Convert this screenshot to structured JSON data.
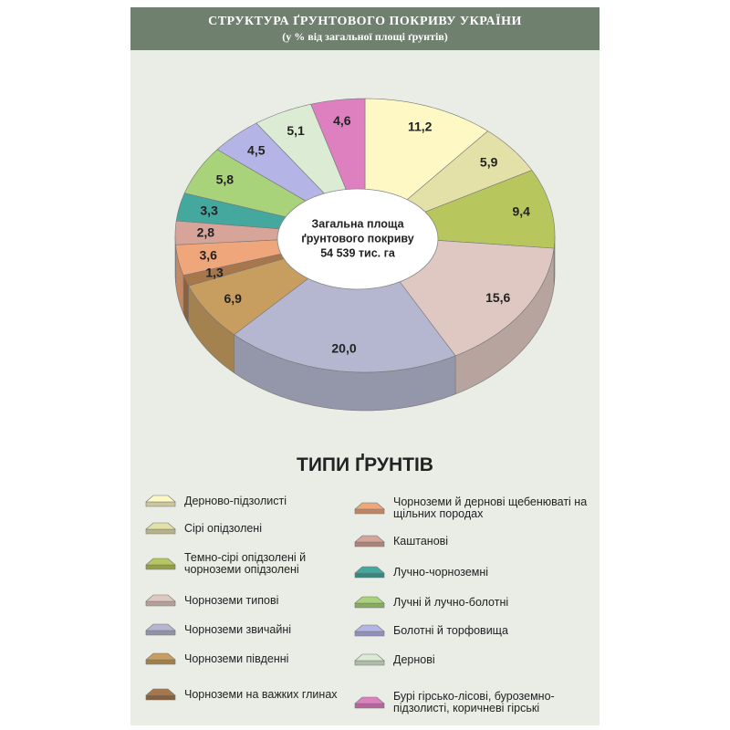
{
  "chart_data": {
    "type": "pie",
    "title": "СТРУКТУРА ҐРУНТОВОГО ПОКРИВУ УКРАЇНИ",
    "subtitle": "(у % від загальної площі ґрунтів)",
    "center_label": [
      "Загальна площа",
      "ґрунтового покриву",
      "54 539 тис. га"
    ],
    "legend_title": "ТИПИ ҐРУНТІВ",
    "categories": [
      "Дерново-підзолисті",
      "Сірі опідзолені",
      "Темно-сірі опідзолені й чорноземи опідзолені",
      "Чорноземи типові",
      "Чорноземи звичайні",
      "Чорноземи південні",
      "Чорноземи на важких глинах",
      "Чорноземи й дернові щебенюваті на щільних породах",
      "Каштанові",
      "Лучно-чорноземні",
      "Лучні й лучно-болотні",
      "Болотні й торфовища",
      "Дернові",
      "Бурі гірсько-лісові, буроземно-підзолисті, коричневі гірські"
    ],
    "values": [
      11.2,
      5.9,
      9.4,
      15.6,
      20.0,
      6.9,
      1.3,
      3.6,
      2.8,
      3.3,
      5.8,
      4.5,
      5.1,
      4.6
    ],
    "value_labels": [
      "11,2",
      "5,9",
      "9,4",
      "15,6",
      "20,0",
      "6,9",
      "1,3",
      "3,6",
      "2,8",
      "3,3",
      "5,8",
      "4,5",
      "5,1",
      "4,6"
    ],
    "colors": [
      "#fdf8c4",
      "#e3e1a8",
      "#b8c65e",
      "#e0c8c2",
      "#b4b7cf",
      "#c89e60",
      "#a8764b",
      "#f0a67b",
      "#d6a498",
      "#45a89f",
      "#a9d37a",
      "#b5b4e6",
      "#dcebd4",
      "#de80c0"
    ]
  }
}
